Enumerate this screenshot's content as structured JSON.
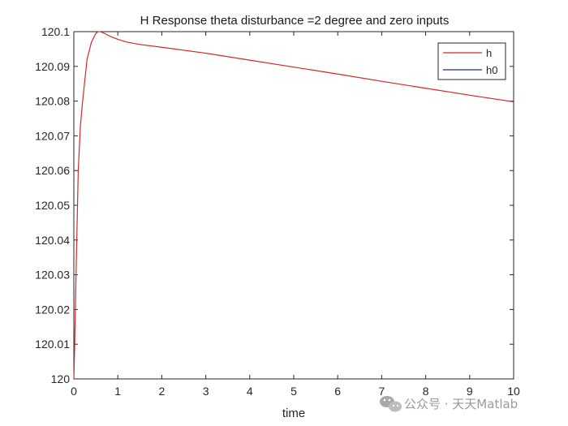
{
  "chart_data": {
    "type": "line",
    "title": "H Response theta disturbance =2 degree and zero inputs",
    "xlabel": "time",
    "ylabel": "",
    "xlim": [
      0,
      10
    ],
    "ylim": [
      120,
      120.1
    ],
    "x_ticks": [
      0,
      1,
      2,
      3,
      4,
      5,
      6,
      7,
      8,
      9,
      10
    ],
    "y_ticks": [
      120,
      120.01,
      120.02,
      120.03,
      120.04,
      120.05,
      120.06,
      120.07,
      120.08,
      120.09,
      120.1
    ],
    "y_tick_labels": [
      "120",
      "120.01",
      "120.02",
      "120.03",
      "120.04",
      "120.05",
      "120.06",
      "120.07",
      "120.08",
      "120.09",
      "120.1"
    ],
    "grid": false,
    "legend_position": "top-right",
    "series": [
      {
        "name": "h",
        "color": "#d62728",
        "x": [
          0,
          0.02,
          0.05,
          0.1,
          0.15,
          0.2,
          0.3,
          0.4,
          0.5,
          0.55,
          0.6,
          0.7,
          0.8,
          1.0,
          1.2,
          1.5,
          2.0,
          3.0,
          4.0,
          5.0,
          6.0,
          7.0,
          8.0,
          9.0,
          10.0
        ],
        "y": [
          120,
          120.01,
          120.03,
          120.06,
          120.073,
          120.08,
          120.092,
          120.097,
          120.0995,
          120.1,
          120.1,
          120.0995,
          120.0988,
          120.0978,
          120.097,
          120.0963,
          120.0955,
          120.0938,
          120.0918,
          120.0898,
          120.0878,
          120.0857,
          120.0837,
          120.0817,
          120.0798
        ]
      },
      {
        "name": "h0",
        "color": "#1f2f8f",
        "x": [],
        "y": []
      }
    ]
  },
  "watermark": {
    "text": "公众号 · 天天Matlab",
    "icon": "wechat-icon"
  }
}
